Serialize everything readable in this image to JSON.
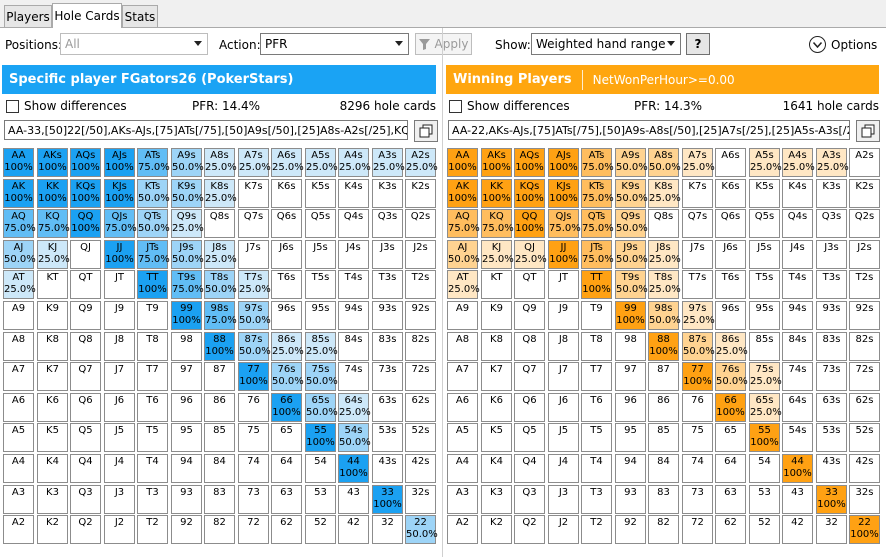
{
  "tabs": [
    {
      "label": "Players",
      "active": false
    },
    {
      "label": "Hole Cards",
      "active": true
    },
    {
      "label": "Stats",
      "active": false
    }
  ],
  "toolbar": {
    "positions_label": "Positions:",
    "positions_value": "All",
    "action_label": "Action:",
    "action_value": "PFR",
    "apply_label": "Apply",
    "show_label": "Show:",
    "show_value": "Weighted hand range",
    "help_label": "?",
    "options_label": "Options"
  },
  "left": {
    "title": "Specific player FGators26 (PokerStars)",
    "show_diff_label": "Show differences",
    "stat": "PFR: 14.4%",
    "count": "8296 hole cards",
    "range_text": "AA-33,[50]22[/50],AKs-AJs,[75]ATs[/75],[50]A9s[/50],[25]A8s-A2s[/25],KQs-K",
    "header_color": "#1aa3f4"
  },
  "right": {
    "title": "Winning Players",
    "filter": "NetWonPerHour>=0.00",
    "show_diff_label": "Show differences",
    "stat": "PFR: 14.3%",
    "count": "1641 hole cards",
    "range_text": "AA-22,AKs-AJs,[75]ATs[/75],[50]A9s-A8s[/50],[25]A7s[/25],[25]A5s-A3s[/25],K",
    "header_color": "#ffa60f"
  },
  "colors": {
    "left": {
      "100": "#1ba1f2",
      "75": "#61bdf5",
      "50": "#9dd4f7",
      "25": "#cde8f9"
    },
    "right": {
      "100": "#ffa113",
      "75": "#ffbd5e",
      "50": "#ffd391",
      "25": "#ffe7c4"
    }
  },
  "left_matrix": [
    [
      "AA 100%",
      "AKs 100%",
      "AQs 100%",
      "AJs 100%",
      "ATs 75.0%",
      "A9s 50.0%",
      "A8s 25.0%",
      "A7s 25.0%",
      "A6s 25.0%",
      "A5s 25.0%",
      "A4s 25.0%",
      "A3s 25.0%",
      "A2s 25.0%"
    ],
    [
      "AK 100%",
      "KK 100%",
      "KQs 100%",
      "KJs 100%",
      "KTs 50.0%",
      "K9s 50.0%",
      "K8s 25.0%",
      "K7s",
      "K6s",
      "K5s",
      "K4s",
      "K3s",
      "K2s"
    ],
    [
      "AQ 75.0%",
      "KQ 75.0%",
      "QQ 100%",
      "QJs 75.0%",
      "QTs 50.0%",
      "Q9s 25.0%",
      "Q8s",
      "Q7s",
      "Q6s",
      "Q5s",
      "Q4s",
      "Q3s",
      "Q2s"
    ],
    [
      "AJ 50.0%",
      "KJ 25.0%",
      "QJ",
      "JJ 100%",
      "JTs 75.0%",
      "J9s 50.0%",
      "J8s 25.0%",
      "J7s",
      "J6s",
      "J5s",
      "J4s",
      "J3s",
      "J2s"
    ],
    [
      "AT 25.0%",
      "KT",
      "QT",
      "JT",
      "TT 100%",
      "T9s 75.0%",
      "T8s 50.0%",
      "T7s 25.0%",
      "T6s",
      "T5s",
      "T4s",
      "T3s",
      "T2s"
    ],
    [
      "A9",
      "K9",
      "Q9",
      "J9",
      "T9",
      "99 100%",
      "98s 75.0%",
      "97s 50.0%",
      "96s",
      "95s",
      "94s",
      "93s",
      "92s"
    ],
    [
      "A8",
      "K8",
      "Q8",
      "J8",
      "T8",
      "98",
      "88 100%",
      "87s 50.0%",
      "86s 25.0%",
      "85s 25.0%",
      "84s",
      "83s",
      "82s"
    ],
    [
      "A7",
      "K7",
      "Q7",
      "J7",
      "T7",
      "97",
      "87",
      "77 100%",
      "76s 50.0%",
      "75s 50.0%",
      "74s",
      "73s",
      "72s"
    ],
    [
      "A6",
      "K6",
      "Q6",
      "J6",
      "T6",
      "96",
      "86",
      "76",
      "66 100%",
      "65s 50.0%",
      "64s 25.0%",
      "63s",
      "62s"
    ],
    [
      "A5",
      "K5",
      "Q5",
      "J5",
      "T5",
      "95",
      "85",
      "75",
      "65",
      "55 100%",
      "54s 50.0%",
      "53s",
      "52s"
    ],
    [
      "A4",
      "K4",
      "Q4",
      "J4",
      "T4",
      "94",
      "84",
      "74",
      "64",
      "54",
      "44 100%",
      "43s",
      "42s"
    ],
    [
      "A3",
      "K3",
      "Q3",
      "J3",
      "T3",
      "93",
      "83",
      "73",
      "63",
      "53",
      "43",
      "33 100%",
      "32s"
    ],
    [
      "A2",
      "K2",
      "Q2",
      "J2",
      "T2",
      "92",
      "82",
      "72",
      "62",
      "52",
      "42",
      "32",
      "22 50.0%"
    ]
  ],
  "right_matrix": [
    [
      "AA 100%",
      "AKs 100%",
      "AQs 100%",
      "AJs 100%",
      "ATs 75.0%",
      "A9s 50.0%",
      "A8s 50.0%",
      "A7s 25.0%",
      "A6s",
      "A5s 25.0%",
      "A4s 25.0%",
      "A3s 25.0%",
      "A2s"
    ],
    [
      "AK 100%",
      "KK 100%",
      "KQs 100%",
      "KJs 100%",
      "KTs 75.0%",
      "K9s 50.0%",
      "K8s 25.0%",
      "K7s",
      "K6s",
      "K5s",
      "K4s",
      "K3s",
      "K2s"
    ],
    [
      "AQ 75.0%",
      "KQ 75.0%",
      "QQ 100%",
      "QJs 75.0%",
      "QTs 75.0%",
      "Q9s 50.0%",
      "Q8s",
      "Q7s",
      "Q6s",
      "Q5s",
      "Q4s",
      "Q3s",
      "Q2s"
    ],
    [
      "AJ 50.0%",
      "KJ 25.0%",
      "QJ 25.0%",
      "JJ 100%",
      "JTs 75.0%",
      "J9s 50.0%",
      "J8s 25.0%",
      "J7s",
      "J6s",
      "J5s",
      "J4s",
      "J3s",
      "J2s"
    ],
    [
      "AT 25.0%",
      "KT",
      "QT",
      "JT",
      "TT 100%",
      "T9s 50.0%",
      "T8s 25.0%",
      "T7s",
      "T6s",
      "T5s",
      "T4s",
      "T3s",
      "T2s"
    ],
    [
      "A9",
      "K9",
      "Q9",
      "J9",
      "T9",
      "99 100%",
      "98s 50.0%",
      "97s 25.0%",
      "96s",
      "95s",
      "94s",
      "93s",
      "92s"
    ],
    [
      "A8",
      "K8",
      "Q8",
      "J8",
      "T8",
      "98",
      "88 100%",
      "87s 50.0%",
      "86s 25.0%",
      "85s",
      "84s",
      "83s",
      "82s"
    ],
    [
      "A7",
      "K7",
      "Q7",
      "J7",
      "T7",
      "97",
      "87",
      "77 100%",
      "76s 50.0%",
      "75s 25.0%",
      "74s",
      "73s",
      "72s"
    ],
    [
      "A6",
      "K6",
      "Q6",
      "J6",
      "T6",
      "96",
      "86",
      "76",
      "66 100%",
      "65s 25.0%",
      "64s",
      "63s",
      "62s"
    ],
    [
      "A5",
      "K5",
      "Q5",
      "J5",
      "T5",
      "95",
      "85",
      "75",
      "65",
      "55 100%",
      "54s",
      "53s",
      "52s"
    ],
    [
      "A4",
      "K4",
      "Q4",
      "J4",
      "T4",
      "94",
      "84",
      "74",
      "64",
      "54",
      "44 100%",
      "43s",
      "42s"
    ],
    [
      "A3",
      "K3",
      "Q3",
      "J3",
      "T3",
      "93",
      "83",
      "73",
      "63",
      "53",
      "43",
      "33 100%",
      "32s"
    ],
    [
      "A2",
      "K2",
      "Q2",
      "J2",
      "T2",
      "92",
      "82",
      "72",
      "62",
      "52",
      "42",
      "32",
      "22 100%"
    ]
  ]
}
